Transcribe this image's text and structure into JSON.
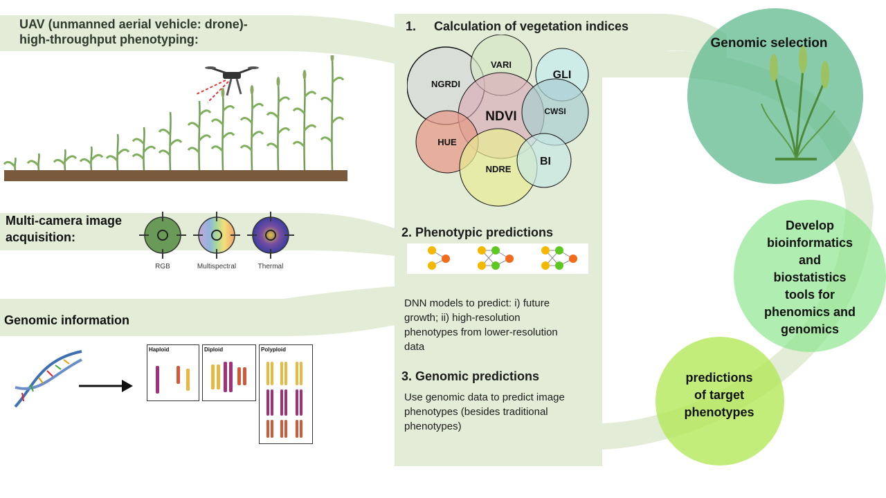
{
  "uav": {
    "title_line1": "UAV (unmanned aerial vehicle: drone)-",
    "title_line2": "high-throughput phenotyping:"
  },
  "camera": {
    "title_line1": "Multi-camera image",
    "title_line2": "acquisition:",
    "labels": [
      "RGB",
      "Multispectral",
      "Thermal"
    ]
  },
  "genomic_info": {
    "title": "Genomic information",
    "panels": [
      "Haploid",
      "Diploid",
      "Polyploid"
    ]
  },
  "step1": {
    "number": "1.",
    "title": "Calculation of vegetation indices",
    "indices": [
      "NGRDI",
      "VARI",
      "GLI",
      "NDVI",
      "CWSI",
      "HUE",
      "NDRE",
      "BI"
    ]
  },
  "step2": {
    "title": "2. Phenotypic predictions",
    "desc_lines": [
      "DNN models to predict: i) future",
      "growth; ii) high-resolution",
      "phenotypes from lower-resolution",
      "data"
    ]
  },
  "step3": {
    "title": "3. Genomic predictions",
    "desc_lines": [
      "Use genomic data to predict image",
      "phenotypes (besides traditional",
      "phenotypes)"
    ]
  },
  "outcomes": {
    "genomic_selection": "Genomic selection",
    "develop_lines": [
      "Develop",
      "bioinformatics",
      "and",
      "biostatistics",
      "tools for",
      "phenomics and",
      "genomics"
    ],
    "predictions_lines": [
      "predictions",
      "of target",
      "phenotypes"
    ]
  },
  "colors": {
    "band": "#e2ecd6",
    "genomic_selection": "#5fb98f",
    "develop": "#8ee68e",
    "predictions": "#b4e85a",
    "soil": "#7a5a3c",
    "plant": "#6f9e52"
  }
}
